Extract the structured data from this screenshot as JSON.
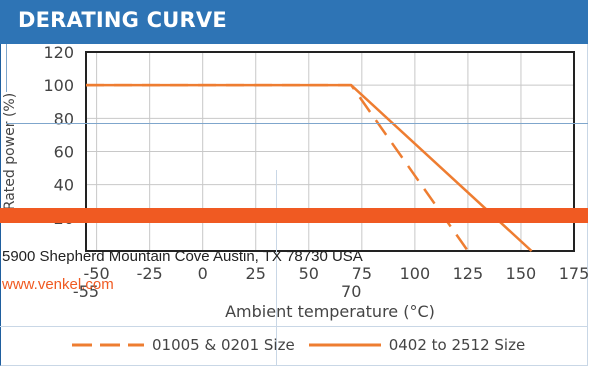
{
  "header": {
    "title": "DERATING CURVE"
  },
  "contact": {
    "address": "5900 Shepherd Mountain Cove Austin, TX 78730 USA",
    "website": "www.venkel.com"
  },
  "colors": {
    "brand_blue": "#2e74b5",
    "accent_orange": "#f05a22",
    "curve_orange": "#ee7d31",
    "text_gray": "#444444"
  },
  "chart_data": {
    "type": "line",
    "title": "",
    "xlabel": "Ambient temperature (°C)",
    "ylabel": "Rated power (%)",
    "xlim": [
      -55,
      175
    ],
    "ylim": [
      0,
      120
    ],
    "x_ticks": [
      "-50",
      "-25",
      "0",
      "25",
      "50",
      "75",
      "100",
      "125",
      "150",
      "175"
    ],
    "x_ticks_values": [
      -50,
      -25,
      0,
      25,
      50,
      75,
      100,
      125,
      150,
      175
    ],
    "y_ticks": [
      "20",
      "40",
      "60",
      "80",
      "100",
      "120"
    ],
    "y_ticks_values": [
      20,
      40,
      60,
      80,
      100,
      120
    ],
    "extra_x_labels": [
      {
        "value": -55,
        "label": "-55"
      },
      {
        "value": 70,
        "label": "70"
      }
    ],
    "grid": true,
    "series": [
      {
        "name": "01005 & 0201 Size",
        "style": "dashed",
        "x": [
          -55,
          70,
          125
        ],
        "y": [
          100,
          100,
          0
        ]
      },
      {
        "name": "0402 to 2512 Size",
        "style": "solid",
        "x": [
          -55,
          70,
          155
        ],
        "y": [
          100,
          100,
          0
        ]
      }
    ]
  }
}
